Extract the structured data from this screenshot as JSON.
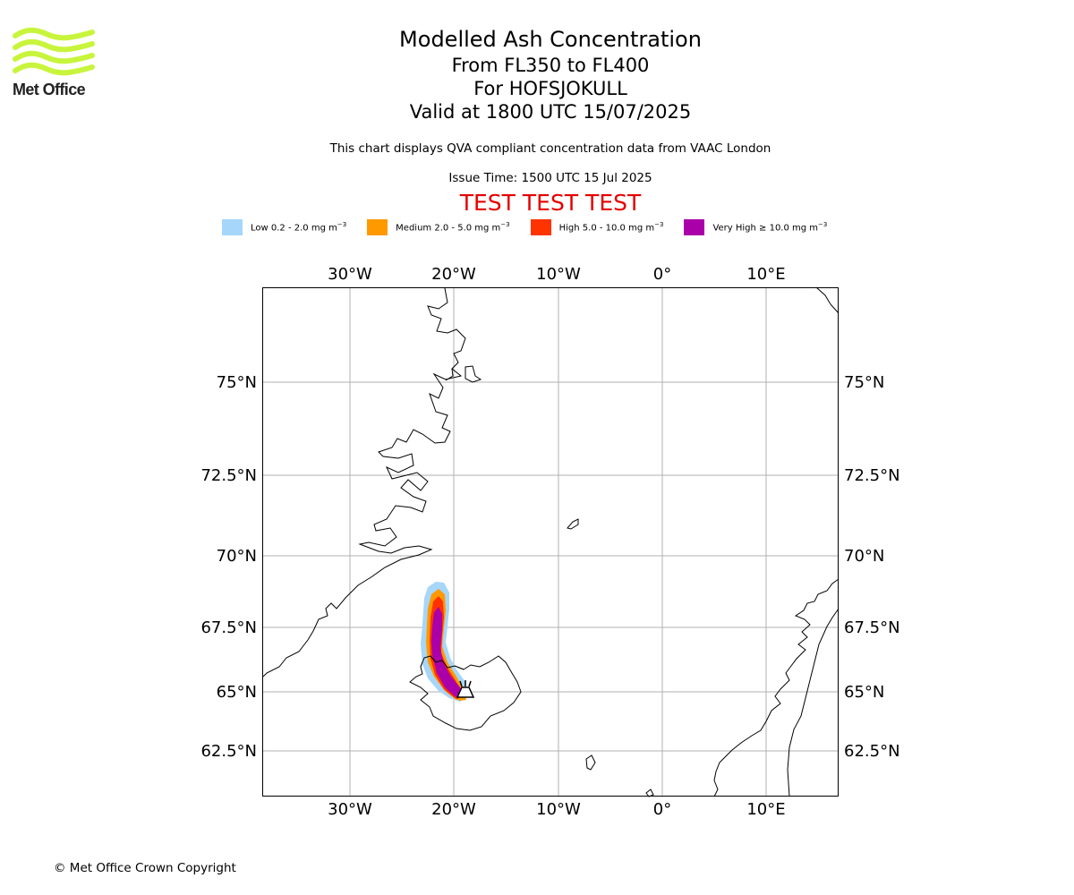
{
  "logo": {
    "text": "Met Office",
    "color": "#c8f53c"
  },
  "title": {
    "main": "Modelled Ash Concentration",
    "levels": "From FL350 to FL400",
    "volcano": "For HOFSJOKULL",
    "valid": "Valid at 1800 UTC 15/07/2025"
  },
  "description": "This chart displays QVA compliant concentration data from VAAC London",
  "issue_time": "Issue Time: 1500 UTC 15 Jul 2025",
  "test_banner": "TEST TEST TEST",
  "legend": [
    {
      "label": "Low 0.2 - 2.0 mg m",
      "sup": "−3",
      "color": "#a6d6fa"
    },
    {
      "label": "Medium 2.0 - 5.0 mg m",
      "sup": "−3",
      "color": "#ff9900"
    },
    {
      "label": "High 5.0 - 10.0 mg m",
      "sup": "−3",
      "color": "#ff3300"
    },
    {
      "label": "Very High ≥ 10.0 mg m",
      "sup": "−3",
      "color": "#aa00aa"
    }
  ],
  "map": {
    "lon_ticks": [
      "30°W",
      "20°W",
      "10°W",
      "0°",
      "10°E"
    ],
    "lat_ticks": [
      "75°N",
      "72.5°N",
      "70°N",
      "67.5°N",
      "65°N",
      "62.5°N"
    ],
    "grid_color": "#b0b0b0",
    "volcano_marker": "volcano-icon"
  },
  "copyright": "© Met Office Crown Copyright"
}
